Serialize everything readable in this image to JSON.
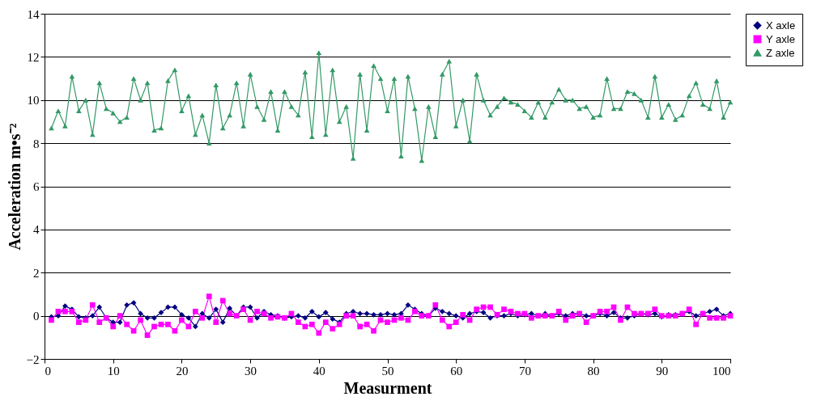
{
  "chart_data": {
    "type": "line",
    "xlabel": "Measurment",
    "ylabel": "Acceleration m•s⁻²",
    "xlim": [
      0,
      100
    ],
    "xticks": [
      0,
      10,
      20,
      30,
      40,
      50,
      60,
      70,
      80,
      90,
      100
    ],
    "ylim": [
      -2,
      14
    ],
    "yticks": [
      -2,
      0,
      2,
      4,
      6,
      8,
      10,
      12,
      14
    ],
    "grid": "y",
    "legend": "right",
    "line_style": "solid",
    "x": [
      1,
      2,
      3,
      4,
      5,
      6,
      7,
      8,
      9,
      10,
      11,
      12,
      13,
      14,
      15,
      16,
      17,
      18,
      19,
      20,
      21,
      22,
      23,
      24,
      25,
      26,
      27,
      28,
      29,
      30,
      31,
      32,
      33,
      34,
      35,
      36,
      37,
      38,
      39,
      40,
      41,
      42,
      43,
      44,
      45,
      46,
      47,
      48,
      49,
      50,
      51,
      52,
      53,
      54,
      55,
      56,
      57,
      58,
      59,
      60,
      61,
      62,
      63,
      64,
      65,
      66,
      67,
      68,
      69,
      70,
      71,
      72,
      73,
      74,
      75,
      76,
      77,
      78,
      79,
      80,
      81,
      82,
      83,
      84,
      85,
      86,
      87,
      88,
      89,
      90,
      91,
      92,
      93,
      94,
      95,
      96,
      97,
      98,
      99,
      100
    ],
    "series": [
      {
        "name": "X axle",
        "color": "#000080",
        "marker": "diamond",
        "values": [
          -0.05,
          0.0,
          0.45,
          0.3,
          -0.05,
          -0.1,
          0.0,
          0.4,
          -0.1,
          -0.3,
          -0.3,
          0.5,
          0.6,
          0.1,
          -0.1,
          -0.1,
          0.15,
          0.4,
          0.4,
          0.05,
          -0.1,
          -0.5,
          0.1,
          -0.1,
          0.3,
          -0.3,
          0.35,
          0.0,
          0.4,
          0.4,
          -0.1,
          0.2,
          0.05,
          0.0,
          -0.1,
          -0.05,
          0.0,
          -0.1,
          0.2,
          -0.05,
          0.15,
          -0.15,
          -0.3,
          0.1,
          0.2,
          0.1,
          0.1,
          0.05,
          0.05,
          0.1,
          0.05,
          0.1,
          0.5,
          0.3,
          0.1,
          0.0,
          0.35,
          0.2,
          0.1,
          0.0,
          -0.1,
          0.1,
          0.2,
          0.15,
          -0.1,
          0.0,
          0.0,
          0.1,
          0.0,
          0.05,
          0.1,
          0.0,
          0.1,
          0.0,
          0.1,
          0.0,
          0.1,
          0.1,
          0.0,
          0.0,
          0.1,
          0.0,
          0.15,
          -0.1,
          -0.1,
          0.0,
          0.1,
          0.05,
          0.1,
          -0.05,
          0.05,
          0.05,
          0.1,
          0.2,
          0.0,
          0.1,
          0.2,
          0.3,
          0.0,
          0.1
        ]
      },
      {
        "name": "Y axle",
        "color": "#ff00ff",
        "marker": "square",
        "values": [
          -0.2,
          0.2,
          0.2,
          0.2,
          -0.3,
          -0.2,
          0.5,
          -0.3,
          -0.1,
          -0.5,
          0.0,
          -0.4,
          -0.7,
          -0.2,
          -0.9,
          -0.5,
          -0.4,
          -0.4,
          -0.7,
          -0.2,
          -0.5,
          0.2,
          -0.1,
          0.9,
          -0.3,
          0.7,
          0.1,
          0.0,
          0.3,
          -0.2,
          0.2,
          0.1,
          -0.1,
          -0.05,
          -0.1,
          0.1,
          -0.3,
          -0.5,
          -0.4,
          -0.8,
          -0.3,
          -0.6,
          -0.4,
          0.0,
          0.0,
          -0.5,
          -0.4,
          -0.7,
          -0.2,
          -0.3,
          -0.2,
          -0.1,
          -0.2,
          0.2,
          0.0,
          0.0,
          0.5,
          -0.2,
          -0.5,
          -0.3,
          0.05,
          -0.2,
          0.3,
          0.4,
          0.4,
          0.05,
          0.3,
          0.2,
          0.1,
          0.1,
          -0.1,
          0.0,
          0.0,
          0.0,
          0.2,
          -0.2,
          0.0,
          0.1,
          -0.3,
          0.0,
          0.2,
          0.2,
          0.4,
          -0.2,
          0.4,
          0.1,
          0.1,
          0.1,
          0.3,
          0.0,
          0.0,
          0.0,
          0.1,
          0.3,
          -0.4,
          0.1,
          -0.1,
          -0.1,
          -0.1,
          0.0
        ]
      },
      {
        "name": "Z axle",
        "color": "#339966",
        "marker": "triangle",
        "values": [
          8.7,
          9.5,
          8.8,
          11.1,
          9.5,
          10.0,
          8.4,
          10.8,
          9.6,
          9.4,
          9.0,
          9.2,
          11.0,
          10.0,
          10.8,
          8.6,
          8.7,
          10.9,
          11.4,
          9.5,
          10.2,
          8.4,
          9.3,
          8.0,
          10.7,
          8.7,
          9.3,
          10.8,
          8.8,
          11.2,
          9.7,
          9.1,
          10.4,
          8.6,
          10.4,
          9.7,
          9.3,
          11.3,
          8.3,
          12.2,
          8.4,
          11.4,
          9.0,
          9.7,
          7.3,
          11.2,
          8.6,
          11.6,
          11.0,
          9.5,
          11.0,
          7.4,
          11.1,
          9.6,
          7.2,
          9.7,
          8.3,
          11.2,
          11.8,
          8.8,
          10.0,
          8.1,
          11.2,
          10.0,
          9.3,
          9.7,
          10.1,
          9.9,
          9.8,
          9.5,
          9.2,
          9.9,
          9.2,
          9.9,
          10.5,
          10.0,
          10.0,
          9.6,
          9.7,
          9.2,
          9.3,
          11.0,
          9.6,
          9.6,
          10.4,
          10.3,
          10.0,
          9.2,
          11.1,
          9.2,
          9.8,
          9.1,
          9.3,
          10.2,
          10.8,
          9.8,
          9.6,
          10.9,
          9.2,
          9.9
        ]
      }
    ]
  }
}
